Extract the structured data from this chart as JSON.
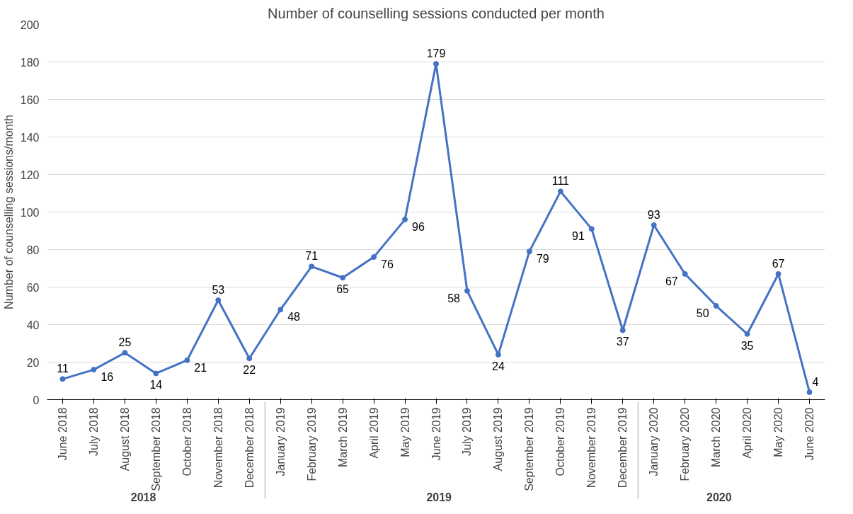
{
  "chart_data": {
    "type": "line",
    "title": "Number of counselling sessions conducted per month",
    "ylabel": "Number of counselling sessions/month",
    "categories": [
      "June 2018",
      "July 2018",
      "August 2018",
      "September 2018",
      "October 2018",
      "November 2018",
      "December 2018",
      "January 2019",
      "February 2019",
      "March 2019",
      "April 2019",
      "May 2019",
      "June 2019",
      "July 2019",
      "August 2019",
      "September 2019",
      "October 2019",
      "November 2019",
      "December 2019",
      "January 2020",
      "February 2020",
      "March 2020",
      "April 2020",
      "May 2020",
      "June 2020"
    ],
    "series": [
      {
        "color": "#4472c4",
        "values": [
          11,
          16,
          25,
          14,
          21,
          53,
          22,
          48,
          71,
          65,
          76,
          96,
          179,
          58,
          24,
          79,
          111,
          91,
          37,
          93,
          67,
          50,
          35,
          67,
          4
        ]
      }
    ],
    "annotations": [
      "2018",
      "2019",
      "2020"
    ],
    "ylim": [
      0,
      200
    ],
    "yticks": [
      0,
      20,
      40,
      60,
      80,
      100,
      120,
      140,
      160,
      180,
      200
    ],
    "grid": "y",
    "marker": "circle",
    "line_style": "solid",
    "data_labels": true
  }
}
